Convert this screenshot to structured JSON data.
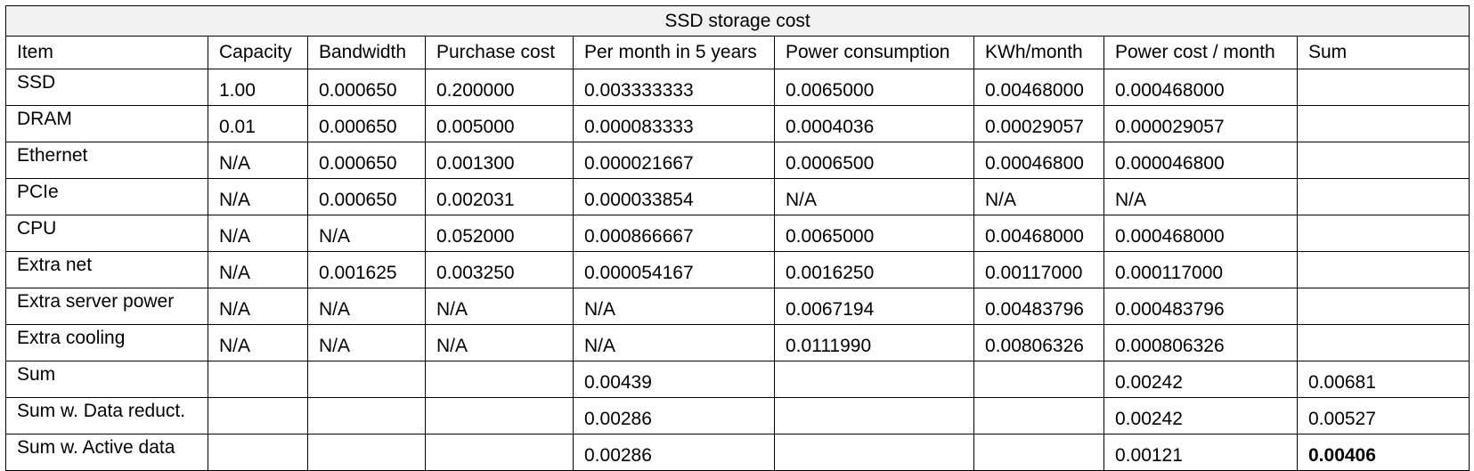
{
  "table": {
    "title": "SSD storage cost",
    "headers": [
      "Item",
      "Capacity",
      "Bandwidth",
      "Purchase cost",
      "Per month in 5 years",
      "Power consumption",
      "KWh/month",
      "Power cost / month",
      "Sum"
    ],
    "rows": [
      [
        "SSD",
        "1.00",
        "0.000650",
        "0.200000",
        "0.003333333",
        "0.0065000",
        "0.00468000",
        "0.000468000",
        ""
      ],
      [
        "DRAM",
        "0.01",
        "0.000650",
        "0.005000",
        "0.000083333",
        "0.0004036",
        "0.00029057",
        "0.000029057",
        ""
      ],
      [
        "Ethernet",
        "N/A",
        "0.000650",
        "0.001300",
        "0.000021667",
        "0.0006500",
        "0.00046800",
        "0.000046800",
        ""
      ],
      [
        "PCIe",
        "N/A",
        "0.000650",
        "0.002031",
        "0.000033854",
        "N/A",
        "N/A",
        "N/A",
        ""
      ],
      [
        "CPU",
        "N/A",
        "N/A",
        "0.052000",
        "0.000866667",
        "0.0065000",
        "0.00468000",
        "0.000468000",
        ""
      ],
      [
        "Extra net",
        "N/A",
        "0.001625",
        "0.003250",
        "0.000054167",
        "0.0016250",
        "0.00117000",
        "0.000117000",
        ""
      ],
      [
        "Extra server power",
        "N/A",
        "N/A",
        "N/A",
        "N/A",
        "0.0067194",
        "0.00483796",
        "0.000483796",
        ""
      ],
      [
        "Extra cooling",
        "N/A",
        "N/A",
        "N/A",
        "N/A",
        "0.0111990",
        "0.00806326",
        "0.000806326",
        ""
      ],
      [
        "Sum",
        "",
        "",
        "",
        "0.00439",
        "",
        "",
        "0.00242",
        "0.00681"
      ],
      [
        "Sum w. Data reduct.",
        "",
        "",
        "",
        "0.00286",
        "",
        "",
        "0.00242",
        "0.00527"
      ],
      [
        "Sum w. Active data",
        "",
        "",
        "",
        "0.00286",
        "",
        "",
        "0.00121",
        "0.00406"
      ]
    ],
    "emphasis": {
      "row": 10,
      "col": 8,
      "style": "bold"
    }
  }
}
